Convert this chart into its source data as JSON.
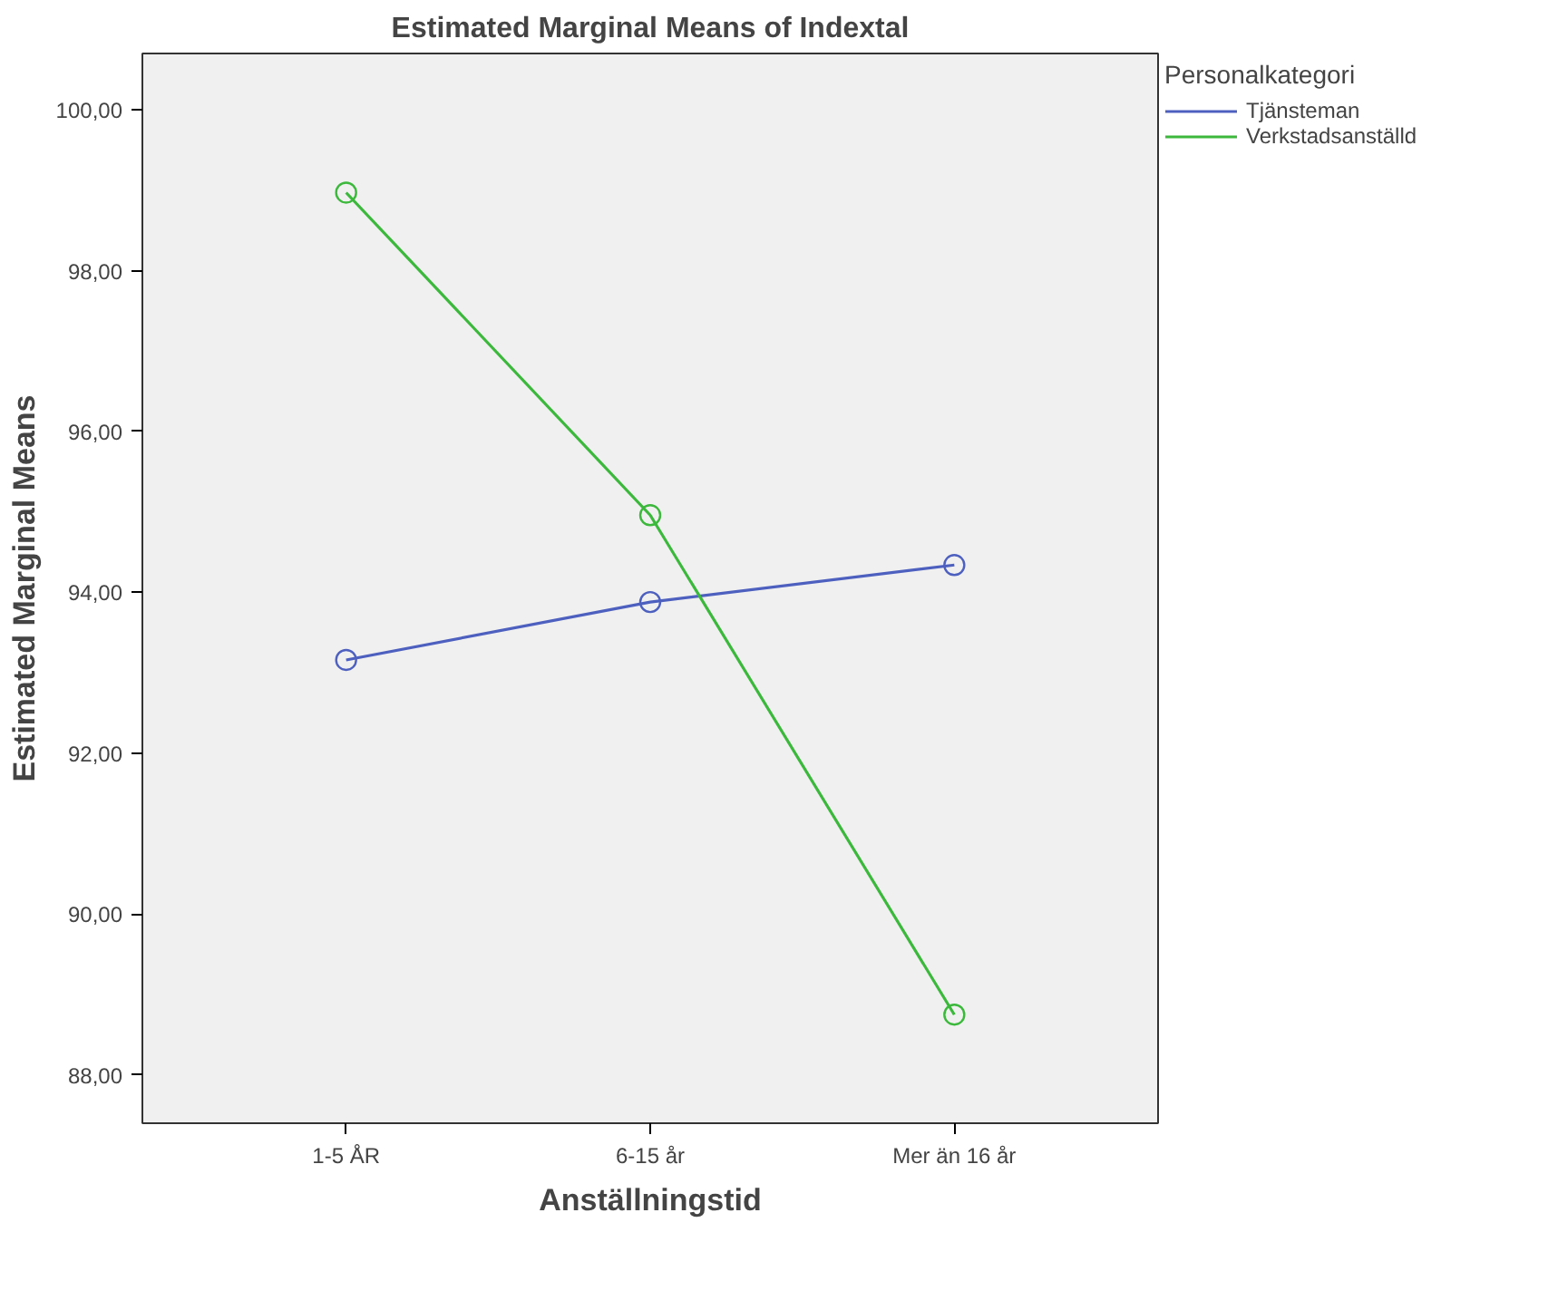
{
  "chart_data": {
    "type": "line",
    "title": "Estimated Marginal Means of Indextal",
    "xlabel": "Anställningstid",
    "ylabel": "Estimated Marginal Means",
    "legend_title": "Personalkategori",
    "categories": [
      "1-5 ÅR",
      "6-15 år",
      "Mer än 16 år"
    ],
    "series": [
      {
        "name": "Tjänsteman",
        "color": "#4e60bf",
        "values": [
          93.16,
          93.88,
          94.34
        ]
      },
      {
        "name": "Verkstadsanställd",
        "color": "#3cb83c",
        "values": [
          98.97,
          94.96,
          88.75
        ]
      }
    ],
    "ylim": [
      87.4,
      100.7
    ],
    "yticks": [
      {
        "value": 88,
        "label": "88,00"
      },
      {
        "value": 90,
        "label": "90,00"
      },
      {
        "value": 92,
        "label": "92,00"
      },
      {
        "value": 94,
        "label": "94,00"
      },
      {
        "value": 96,
        "label": "96,00"
      },
      {
        "value": 98,
        "label": "98,00"
      },
      {
        "value": 100,
        "label": "100,00"
      }
    ],
    "grid": false,
    "legend": "top right",
    "marker": "circle",
    "line_style": "solid"
  }
}
